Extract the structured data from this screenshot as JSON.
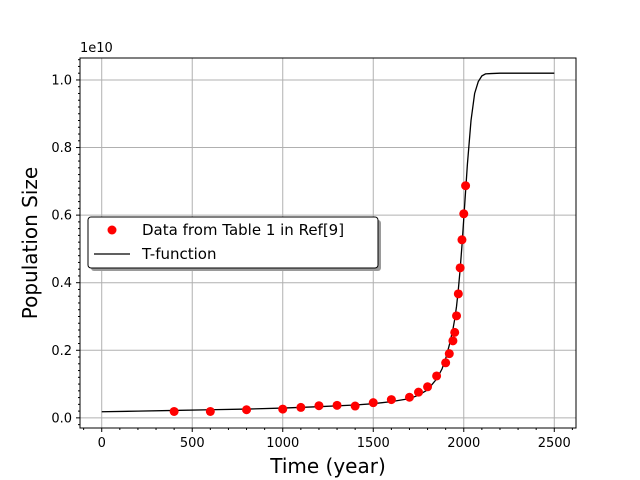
{
  "chart_data": {
    "type": "scatter",
    "title": "",
    "xlabel": "Time (year)",
    "ylabel": "Population Size",
    "y_offset_label": "1e10",
    "xlim": [
      -120,
      2620
    ],
    "ylim": [
      -0.03,
      1.065
    ],
    "x_ticks": [
      0,
      500,
      1000,
      1500,
      2000,
      2500
    ],
    "x_tick_labels": [
      "0",
      "500",
      "1000",
      "1500",
      "2000",
      "2500"
    ],
    "y_ticks": [
      0.0,
      0.2,
      0.4,
      0.6,
      0.8,
      1.0
    ],
    "y_tick_labels": [
      "0.0",
      "0.2",
      "0.4",
      "0.6",
      "0.8",
      "1.0"
    ],
    "grid": true,
    "legend_position": "center-left",
    "series": [
      {
        "name": "Data from Table 1 in Ref[9]",
        "kind": "markers",
        "color": "#ff0000",
        "x": [
          400,
          600,
          800,
          1000,
          1100,
          1200,
          1300,
          1400,
          1500,
          1600,
          1700,
          1750,
          1800,
          1850,
          1900,
          1920,
          1940,
          1950,
          1960,
          1970,
          1980,
          1990,
          2000,
          2010
        ],
        "y": [
          0.019,
          0.019,
          0.024,
          0.026,
          0.031,
          0.036,
          0.037,
          0.035,
          0.045,
          0.054,
          0.061,
          0.076,
          0.092,
          0.124,
          0.163,
          0.19,
          0.228,
          0.253,
          0.302,
          0.367,
          0.444,
          0.527,
          0.604,
          0.687
        ]
      },
      {
        "name": "T-function",
        "kind": "line",
        "color": "#000000",
        "x": [
          0,
          200,
          400,
          600,
          800,
          1000,
          1200,
          1400,
          1500,
          1600,
          1700,
          1750,
          1800,
          1850,
          1880,
          1900,
          1920,
          1940,
          1950,
          1960,
          1970,
          1980,
          1990,
          2000,
          2010,
          2020,
          2040,
          2060,
          2080,
          2100,
          2120,
          2150,
          2200,
          2300,
          2400,
          2500
        ],
        "y": [
          0.018,
          0.02,
          0.022,
          0.024,
          0.026,
          0.029,
          0.033,
          0.038,
          0.042,
          0.048,
          0.057,
          0.067,
          0.083,
          0.115,
          0.145,
          0.175,
          0.215,
          0.262,
          0.292,
          0.33,
          0.38,
          0.44,
          0.51,
          0.59,
          0.67,
          0.75,
          0.88,
          0.96,
          0.995,
          1.012,
          1.018,
          1.019,
          1.02,
          1.02,
          1.02,
          1.02
        ]
      }
    ]
  }
}
